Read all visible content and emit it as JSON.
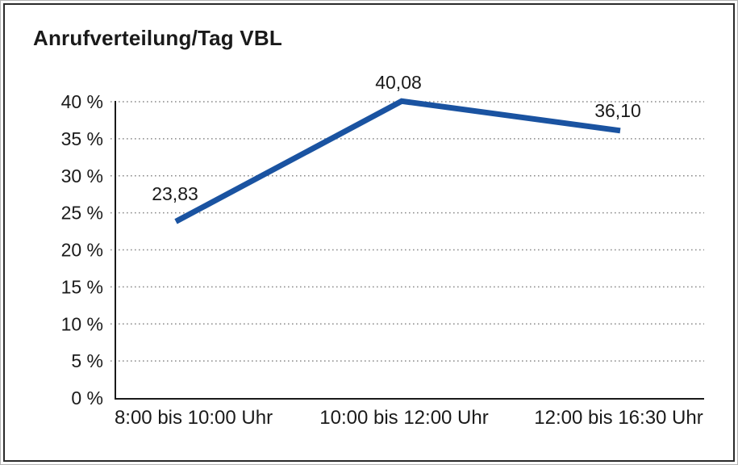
{
  "colors": {
    "line": "#1A53A1",
    "text": "#1A1A1A",
    "grid": "#8A8A8A",
    "axis": "#1A1A1A",
    "frame_border": "#2A2A2A",
    "outer_edge": "#B5B5B5",
    "background": "#FFFFFF"
  },
  "chart_data": {
    "type": "line",
    "title": "Anrufverteilung/Tag VBL",
    "categories": [
      "8:00 bis 10:00 Uhr",
      "10:00 bis 12:00 Uhr",
      "12:00 bis 16:30 Uhr"
    ],
    "values": [
      23.83,
      40.08,
      36.1
    ],
    "point_labels": [
      "23,83",
      "40,08",
      "36,10"
    ],
    "xlabel": "",
    "ylabel": "",
    "ylim": [
      0,
      40
    ],
    "ytick_interval": 5,
    "yticks": [
      "0 %",
      "5 %",
      "10 %",
      "15 %",
      "20 %",
      "25 %",
      "30 %",
      "35 %",
      "40 %"
    ],
    "grid": "horizontal dotted",
    "legend_position": "none",
    "marker": "none"
  }
}
